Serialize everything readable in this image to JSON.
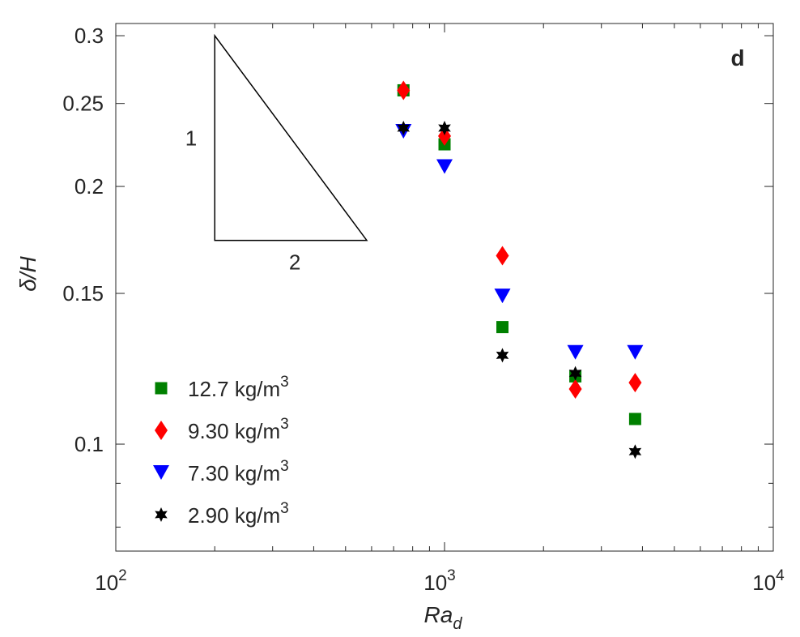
{
  "chart_data": {
    "type": "scatter",
    "panel_label": "d",
    "xlabel": "Ra",
    "xlabel_subscript": "d",
    "ylabel": "δ/H",
    "xscale": "log",
    "yscale": "log",
    "xlim": [
      100,
      10000
    ],
    "ylim": [
      0.075,
      0.31
    ],
    "x_ticks": [
      {
        "value": 100,
        "base": "10",
        "exp": "2"
      },
      {
        "value": 1000,
        "base": "10",
        "exp": "3"
      },
      {
        "value": 10000,
        "base": "10",
        "exp": "4"
      }
    ],
    "y_ticks": [
      {
        "value": 0.1,
        "label": "0.1"
      },
      {
        "value": 0.15,
        "label": "0.15"
      },
      {
        "value": 0.2,
        "label": "0.2"
      },
      {
        "value": 0.25,
        "label": "0.25"
      },
      {
        "value": 0.3,
        "label": "0.3"
      }
    ],
    "grid": false,
    "legend_position": "bottom-left",
    "series": [
      {
        "name": "12.7 kg/m",
        "name_sup": "3",
        "marker": "square",
        "color": "#008000",
        "x": [
          750,
          1000,
          1500,
          2500,
          3800
        ],
        "y": [
          0.259,
          0.224,
          0.137,
          0.12,
          0.107
        ]
      },
      {
        "name": "9.30 kg/m",
        "name_sup": "3",
        "marker": "diamond",
        "color": "#ff0000",
        "x": [
          750,
          1000,
          1500,
          2500,
          3800
        ],
        "y": [
          0.259,
          0.229,
          0.166,
          0.116,
          0.118
        ]
      },
      {
        "name": "7.30 kg/m",
        "name_sup": "3",
        "marker": "triangle-down",
        "color": "#0000ff",
        "x": [
          750,
          1000,
          1500,
          2500,
          3800
        ],
        "y": [
          0.232,
          0.211,
          0.149,
          0.128,
          0.128
        ]
      },
      {
        "name": "2.90 kg/m",
        "name_sup": "3",
        "marker": "hexagram",
        "color": "#000000",
        "x": [
          750,
          1000,
          1500,
          2500,
          3800
        ],
        "y": [
          0.234,
          0.234,
          0.127,
          0.121,
          0.098
        ]
      }
    ],
    "slope_triangle": {
      "x_left": 200,
      "x_right": 580,
      "y_top": 0.3,
      "y_bottom": 0.173,
      "run_label": "2",
      "rise_label": "1"
    }
  }
}
